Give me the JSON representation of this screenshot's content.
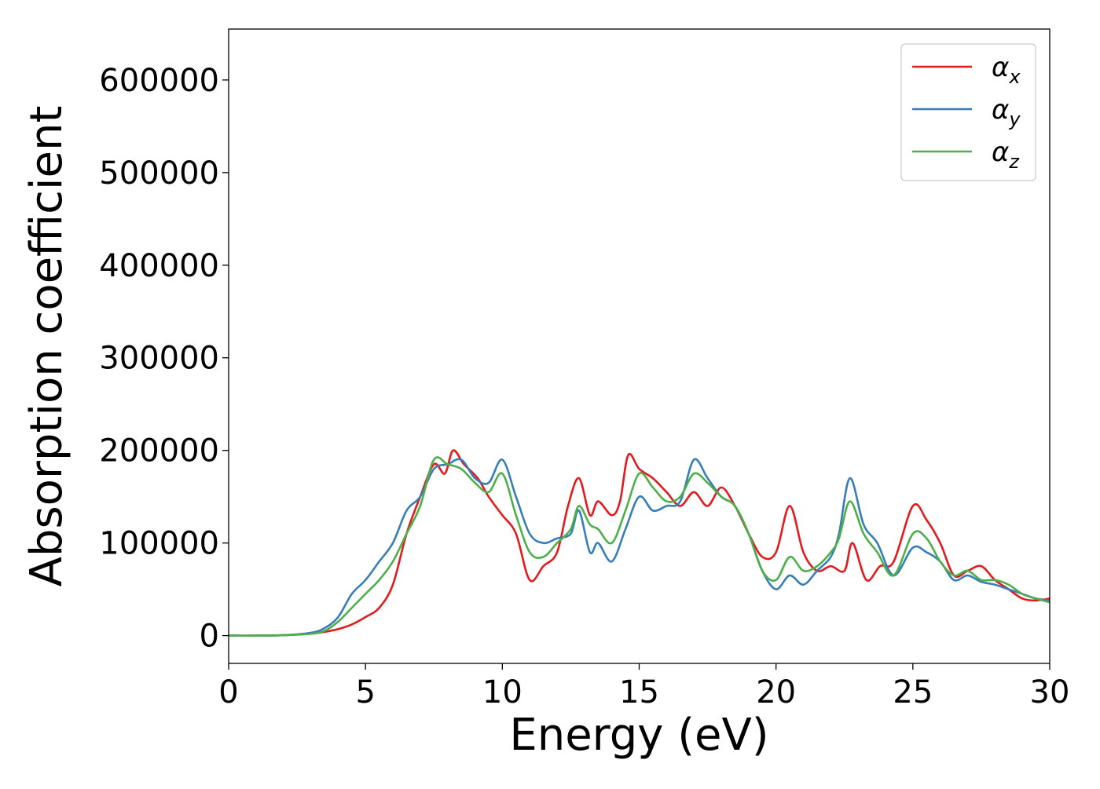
{
  "chart_data": {
    "type": "line",
    "xlabel": "Energy (eV)",
    "ylabel": "Absorption coefficient",
    "xlim": [
      0,
      30
    ],
    "ylim": [
      -30000,
      655000
    ],
    "xticks": [
      0,
      5,
      10,
      15,
      20,
      25,
      30
    ],
    "xtick_labels": [
      "0",
      "5",
      "10",
      "15",
      "20",
      "25",
      "30"
    ],
    "yticks": [
      0,
      100000,
      200000,
      300000,
      400000,
      500000,
      600000
    ],
    "ytick_labels": [
      "0",
      "100000",
      "200000",
      "300000",
      "400000",
      "500000",
      "600000"
    ],
    "grid": false,
    "legend": {
      "position": "top-right"
    },
    "series": [
      {
        "name": "αx",
        "legend_symbol": "α",
        "legend_subscript": "x",
        "color": "#e41a1c",
        "x": [
          0,
          1,
          2,
          3,
          3.5,
          4,
          4.5,
          5,
          5.5,
          6,
          6.5,
          7,
          7.5,
          7.9,
          8.2,
          8.6,
          9.1,
          9.5,
          10,
          10.5,
          11,
          11.5,
          12,
          12.4,
          12.8,
          13.2,
          13.5,
          14,
          14.3,
          14.6,
          15,
          15.5,
          16,
          16.5,
          17,
          17.5,
          18,
          18.5,
          19,
          19.5,
          20,
          20.5,
          21,
          21.5,
          22,
          22.5,
          22.8,
          23.3,
          23.8,
          24.3,
          25,
          25.5,
          26,
          26.5,
          27,
          27.5,
          28,
          28.5,
          29,
          29.5,
          30
        ],
        "y": [
          0,
          0,
          500,
          2000,
          4000,
          7000,
          12000,
          20000,
          30000,
          55000,
          110000,
          150000,
          185000,
          175000,
          200000,
          185000,
          170000,
          150000,
          130000,
          110000,
          60000,
          75000,
          90000,
          140000,
          170000,
          130000,
          145000,
          130000,
          145000,
          195000,
          180000,
          170000,
          155000,
          140000,
          155000,
          140000,
          160000,
          140000,
          110000,
          85000,
          90000,
          140000,
          90000,
          70000,
          75000,
          70000,
          100000,
          60000,
          75000,
          80000,
          140000,
          125000,
          100000,
          65000,
          70000,
          75000,
          60000,
          50000,
          40000,
          38000,
          40000
        ]
      },
      {
        "name": "αy",
        "legend_symbol": "α",
        "legend_subscript": "y",
        "color": "#377eb8",
        "x": [
          0,
          1,
          2,
          3,
          3.5,
          4,
          4.5,
          5,
          5.5,
          6,
          6.5,
          7,
          7.5,
          8,
          8.5,
          9,
          9.5,
          10,
          10.5,
          11,
          11.5,
          12,
          12.5,
          12.8,
          13.2,
          13.5,
          14,
          14.5,
          15,
          15.5,
          16,
          16.5,
          17,
          17.5,
          18,
          18.5,
          19,
          19.5,
          20,
          20.5,
          21,
          21.5,
          22,
          22.3,
          22.7,
          23.2,
          23.7,
          24.3,
          25,
          25.5,
          26,
          26.5,
          27,
          27.5,
          28,
          28.5,
          29,
          29.5,
          30
        ],
        "y": [
          0,
          0,
          500,
          3000,
          8000,
          20000,
          45000,
          60000,
          80000,
          100000,
          135000,
          150000,
          180000,
          185000,
          190000,
          170000,
          165000,
          190000,
          150000,
          110000,
          100000,
          105000,
          110000,
          135000,
          90000,
          100000,
          80000,
          115000,
          150000,
          135000,
          140000,
          145000,
          190000,
          170000,
          150000,
          140000,
          110000,
          70000,
          50000,
          65000,
          55000,
          70000,
          85000,
          110000,
          170000,
          120000,
          100000,
          65000,
          95000,
          90000,
          80000,
          60000,
          65000,
          58000,
          55000,
          50000,
          45000,
          40000,
          38000
        ]
      },
      {
        "name": "αz",
        "legend_symbol": "α",
        "legend_subscript": "z",
        "color": "#4daf4a",
        "x": [
          0,
          1,
          2,
          3,
          3.5,
          4,
          4.5,
          5,
          5.5,
          6,
          6.5,
          7,
          7.5,
          8,
          8.5,
          9,
          9.5,
          10,
          10.5,
          11,
          11.5,
          12,
          12.5,
          12.8,
          13.2,
          13.5,
          14,
          14.5,
          15,
          15.5,
          16,
          16.5,
          17,
          17.5,
          18,
          18.5,
          19,
          19.5,
          20,
          20.5,
          21,
          21.5,
          22,
          22.3,
          22.7,
          23.2,
          23.7,
          24.3,
          25,
          25.5,
          26,
          26.5,
          27,
          27.5,
          28,
          28.5,
          29,
          29.5,
          30
        ],
        "y": [
          0,
          0,
          500,
          2000,
          5000,
          15000,
          30000,
          45000,
          60000,
          80000,
          110000,
          140000,
          190000,
          185000,
          180000,
          165000,
          155000,
          175000,
          130000,
          90000,
          85000,
          100000,
          115000,
          140000,
          120000,
          115000,
          100000,
          135000,
          175000,
          160000,
          145000,
          150000,
          175000,
          165000,
          150000,
          140000,
          110000,
          70000,
          60000,
          85000,
          70000,
          75000,
          90000,
          105000,
          145000,
          110000,
          90000,
          65000,
          110000,
          105000,
          80000,
          65000,
          70000,
          60000,
          60000,
          55000,
          45000,
          40000,
          36000
        ]
      }
    ]
  }
}
